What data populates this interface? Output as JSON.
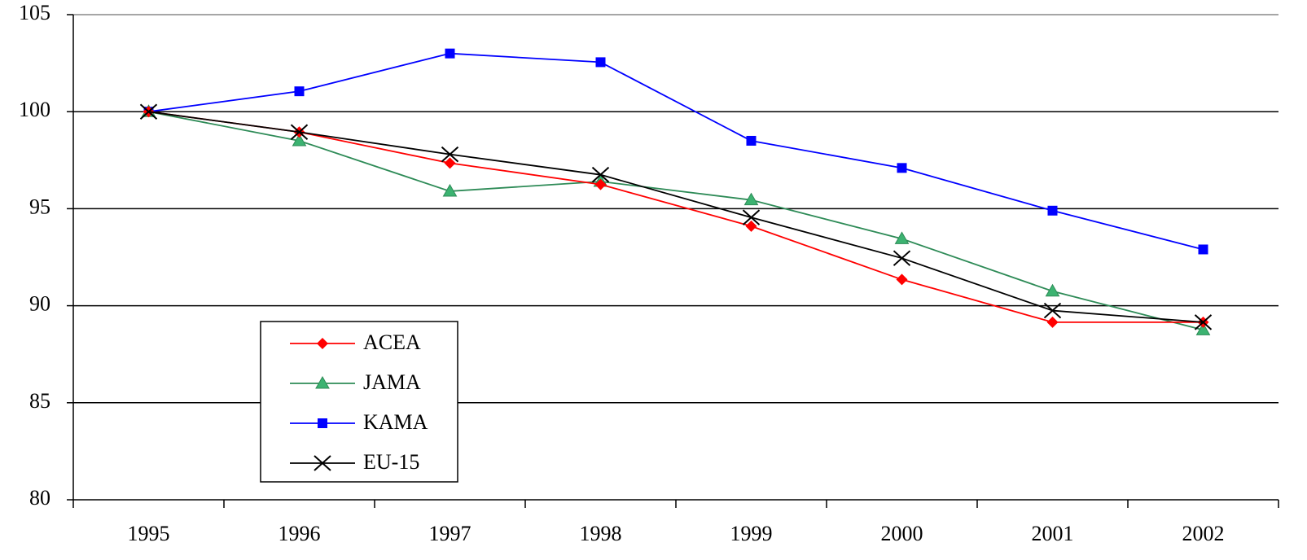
{
  "chart_data": {
    "type": "line",
    "categories": [
      "1995",
      "1996",
      "1997",
      "1998",
      "1999",
      "2000",
      "2001",
      "2002"
    ],
    "series": [
      {
        "name": "ACEA",
        "color": "#ff0000",
        "marker": "diamond",
        "values": [
          100,
          98.95,
          97.35,
          96.25,
          94.1,
          91.35,
          89.15,
          89.15
        ]
      },
      {
        "name": "JAMA",
        "color": "#2e8b57",
        "marker": "triangle",
        "values": [
          100,
          98.5,
          95.9,
          96.4,
          95.45,
          93.45,
          90.75,
          88.75
        ]
      },
      {
        "name": "KAMA",
        "color": "#0000ff",
        "marker": "square",
        "values": [
          100,
          101.05,
          103,
          102.55,
          98.5,
          97.1,
          94.9,
          92.9
        ]
      },
      {
        "name": "EU-15",
        "color": "#000000",
        "marker": "x",
        "values": [
          100,
          98.95,
          97.8,
          96.75,
          94.55,
          92.45,
          89.75,
          89.15
        ]
      }
    ],
    "ylim": [
      80,
      105
    ],
    "yticks": [
      80,
      85,
      90,
      95,
      100,
      105
    ],
    "grid": true,
    "legend": "lower left"
  }
}
